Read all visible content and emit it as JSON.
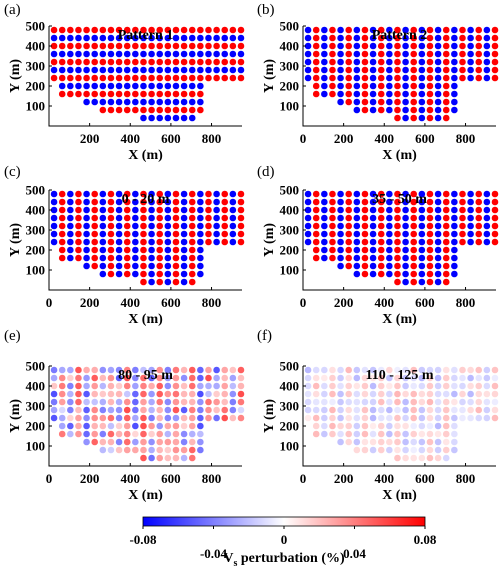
{
  "chart_data": [
    {
      "panel_label": "(a)",
      "title": "Pattern 1",
      "type": "scatter",
      "mode": "pattern1",
      "amp": 1.0,
      "xlabel": "X (m)",
      "ylabel": "Y (m)",
      "xlim": [
        0,
        950
      ],
      "ylim": [
        0,
        500
      ],
      "xticks": [
        200,
        400,
        600,
        800
      ],
      "yticks": [
        100,
        200,
        300,
        400,
        500
      ]
    },
    {
      "panel_label": "(b)",
      "title": "Pattern 2",
      "type": "scatter",
      "mode": "pattern2",
      "amp": 1.0,
      "xlabel": "X (m)",
      "ylabel": "Y (m)",
      "xlim": [
        0,
        950
      ],
      "ylim": [
        0,
        500
      ],
      "xticks": [
        0,
        200,
        400,
        600,
        800
      ],
      "yticks": [
        100,
        200,
        300,
        400,
        500
      ]
    },
    {
      "panel_label": "(c)",
      "title": "0 - 20 m",
      "type": "scatter",
      "mode": "pattern2",
      "amp": 1.0,
      "xlabel": "X (m)",
      "ylabel": "Y (m)",
      "xlim": [
        0,
        950
      ],
      "ylim": [
        0,
        500
      ],
      "xticks": [
        0,
        200,
        400,
        600,
        800
      ],
      "yticks": [
        100,
        200,
        300,
        400,
        500
      ]
    },
    {
      "panel_label": "(d)",
      "title": "35 - 50 m",
      "type": "scatter",
      "mode": "pattern2",
      "amp": 1.0,
      "xlabel": "X (m)",
      "ylabel": "Y (m)",
      "xlim": [
        0,
        950
      ],
      "ylim": [
        0,
        500
      ],
      "xticks": [
        0,
        200,
        400,
        600,
        800
      ],
      "yticks": [
        100,
        200,
        300,
        400,
        500
      ]
    },
    {
      "panel_label": "(e)",
      "title": "80 - 95 m",
      "type": "scatter",
      "mode": "noisy",
      "amp": 0.7,
      "xlabel": "X (m)",
      "ylabel": "Y (m)",
      "xlim": [
        0,
        950
      ],
      "ylim": [
        0,
        500
      ],
      "xticks": [
        0,
        200,
        400,
        600,
        800
      ],
      "yticks": [
        100,
        200,
        300,
        400,
        500
      ]
    },
    {
      "panel_label": "(f)",
      "title": "110 - 125 m",
      "type": "scatter",
      "mode": "noisy",
      "amp": 0.28,
      "xlabel": "X (m)",
      "ylabel": "Y (m)",
      "xlim": [
        0,
        950
      ],
      "ylim": [
        0,
        500
      ],
      "xticks": [
        0,
        200,
        400,
        600,
        800
      ],
      "yticks": [
        100,
        200,
        300,
        400,
        500
      ]
    }
  ],
  "colorbar": {
    "label_main": "V",
    "label_sub": "s",
    "label_rest": " perturbation (%)",
    "range": [
      -0.08,
      0.08
    ],
    "ticks": [
      -0.08,
      -0.04,
      0,
      0.04,
      0.08
    ],
    "tick_labels": [
      "-0.08",
      "-0.04",
      "0",
      "0.04",
      "0.08"
    ],
    "colors": {
      "negative": "#0000ff",
      "zero": "#ffffff",
      "positive": "#ff0000"
    }
  },
  "grid_columns_x": [
    25,
    65,
    105,
    145,
    185,
    225,
    265,
    305,
    345,
    385,
    425,
    465,
    505,
    545,
    585,
    625,
    665,
    705,
    745,
    785,
    825,
    865,
    905,
    945
  ],
  "grid_columns_ymin": [
    220,
    160,
    160,
    140,
    120,
    100,
    80,
    80,
    60,
    60,
    60,
    40,
    40,
    20,
    20,
    20,
    20,
    40,
    60,
    220,
    220,
    220,
    220,
    220
  ],
  "grid_y_top": 480,
  "grid_y_step": 40
}
